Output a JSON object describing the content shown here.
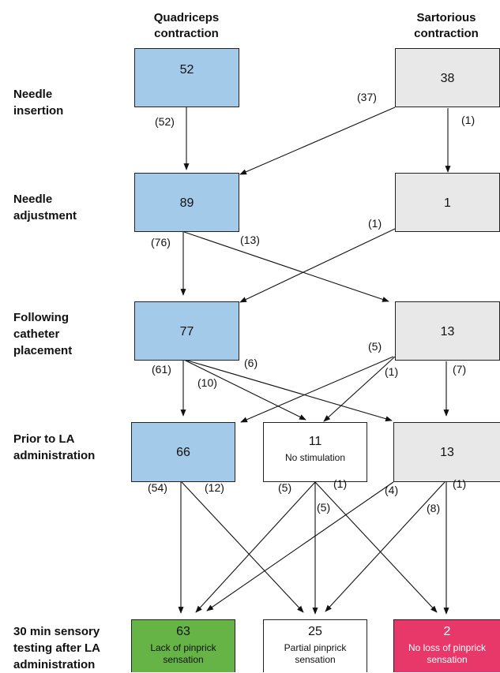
{
  "columns": {
    "quadriceps": [
      "Quadriceps",
      "contraction"
    ],
    "sartorious": [
      "Sartorious",
      "contraction"
    ]
  },
  "rows": {
    "insertion": [
      "Needle",
      "insertion"
    ],
    "adjustment": [
      "Needle",
      "adjustment"
    ],
    "catheter": [
      "Following",
      "catheter",
      "placement"
    ],
    "prior": [
      "Prior to LA",
      "administration"
    ],
    "testing": [
      "30 min sensory",
      "testing after LA",
      "administration"
    ]
  },
  "boxes": {
    "insertion_quad": {
      "value": "52"
    },
    "insertion_sart": {
      "value": "38"
    },
    "adjustment_quad": {
      "value": "89"
    },
    "adjustment_sart": {
      "value": "1"
    },
    "catheter_quad": {
      "value": "77"
    },
    "catheter_sart": {
      "value": "13"
    },
    "prior_quad": {
      "value": "66"
    },
    "prior_nostim": {
      "value": "11",
      "label": "No stimulation"
    },
    "prior_sart": {
      "value": "13"
    },
    "result_lack": {
      "value": "63",
      "label": [
        "Lack of pinprick",
        "sensation"
      ]
    },
    "result_partial": {
      "value": "25",
      "label": [
        "Partial pinprick",
        "sensation"
      ]
    },
    "result_noloss": {
      "value": "2",
      "label": [
        "No loss of pinprick",
        "sensation"
      ]
    }
  },
  "counts": {
    "c1": "(52)",
    "c2": "(37)",
    "c3": "(1)",
    "c4": "(1)",
    "c5": "(76)",
    "c6": "(13)",
    "c7": "(5)",
    "c8": "(61)",
    "c9": "(6)",
    "c10": "(10)",
    "c11": "(1)",
    "c12": "(7)",
    "c13": "(54)",
    "c14": "(12)",
    "c15": "(5)",
    "c16": "(1)",
    "c17": "(5)",
    "c18": "(4)",
    "c19": "(1)",
    "c20": "(8)"
  },
  "colors": {
    "quadriceps_box": "#a3cbe9",
    "sartorious_box": "#e8e8e8",
    "lack_of_pinprick": "#67b446",
    "no_loss_of_pinprick": "#e8386a"
  }
}
